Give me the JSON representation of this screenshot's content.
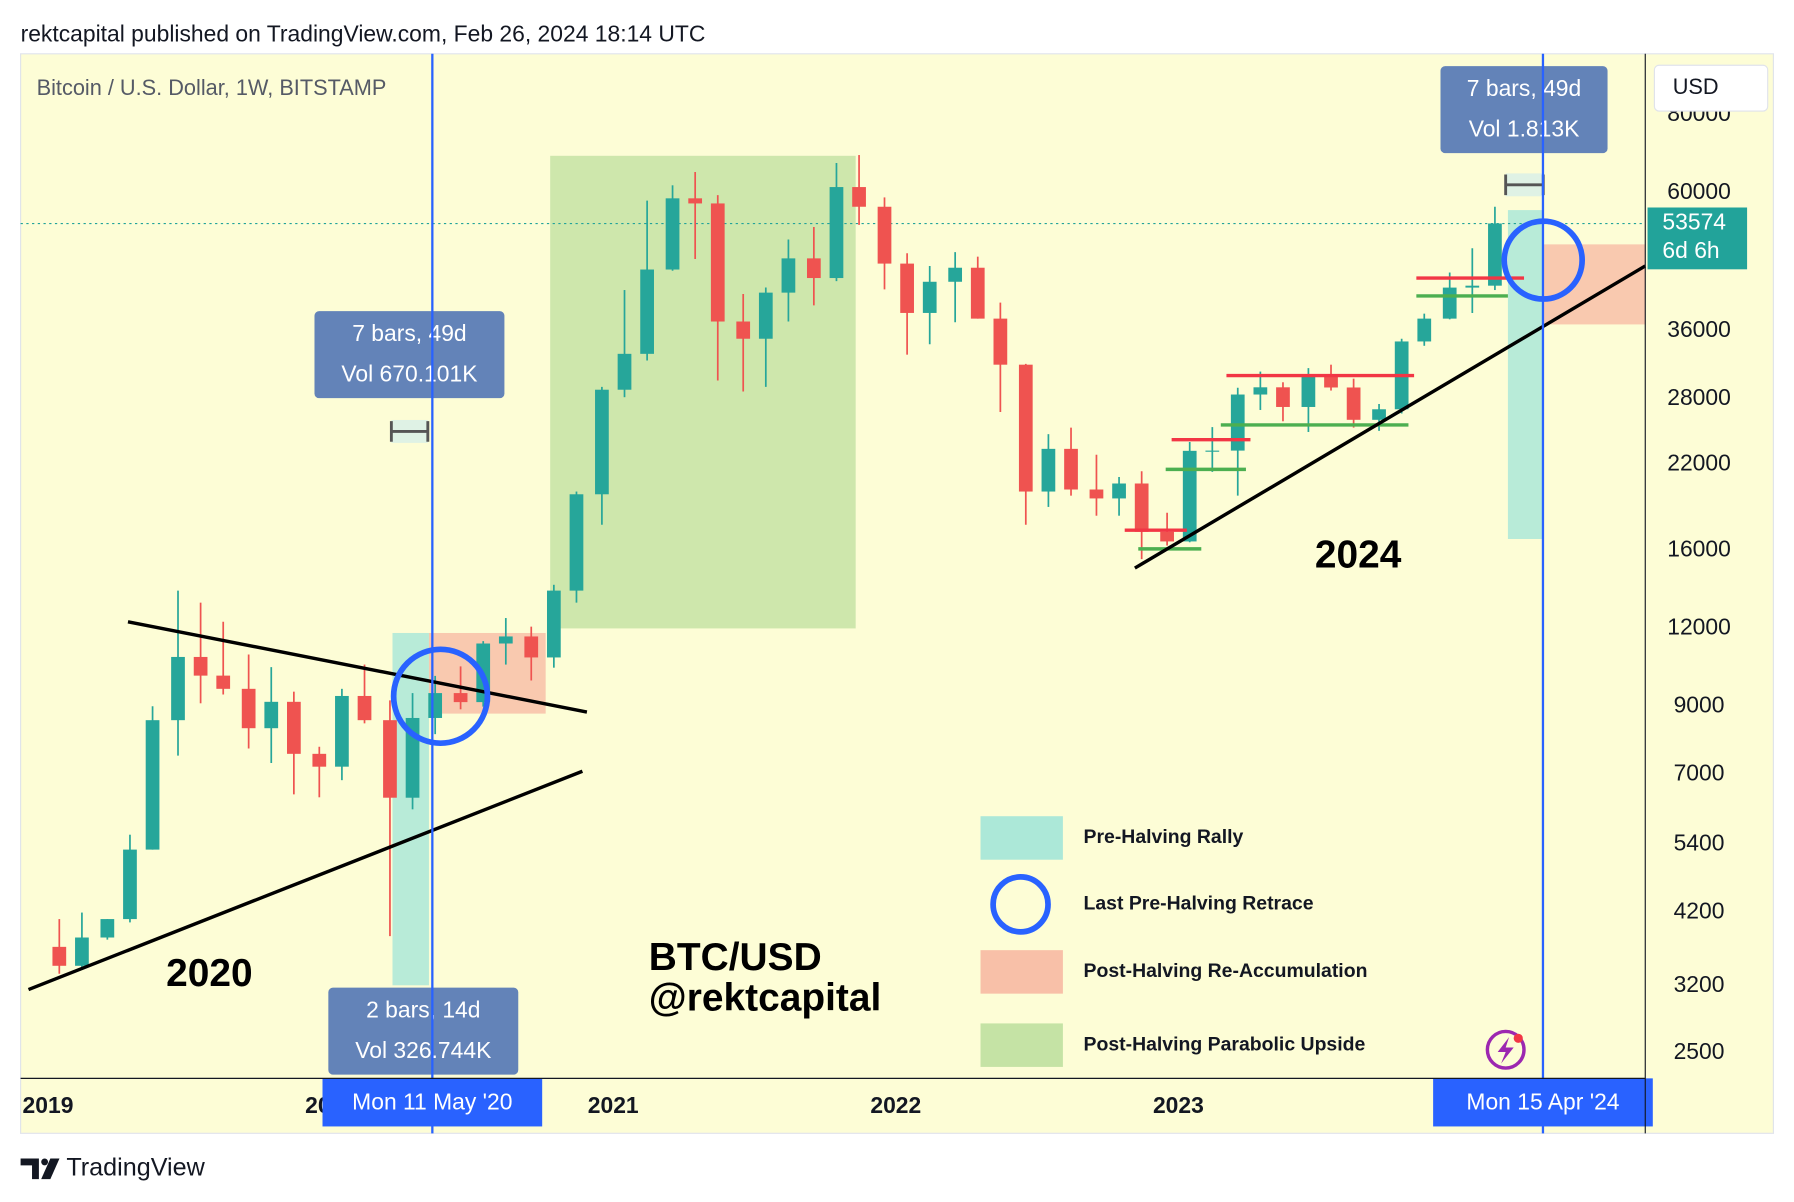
{
  "header": "rektcapital published on TradingView.com, Feb 26, 2024 18:14 UTC",
  "footer": "TradingView",
  "chart_data": {
    "type": "candlestick",
    "title": "Bitcoin / U.S. Dollar, 1W, BITSTAMP",
    "currency": "USD",
    "x": [
      2019.04,
      2019.12,
      2019.21,
      2019.29,
      2019.37,
      2019.46,
      2019.54,
      2019.62,
      2019.71,
      2019.79,
      2019.87,
      2019.96,
      2020.04,
      2020.12,
      2020.21,
      2020.29,
      2020.37,
      2020.46,
      2020.54,
      2020.62,
      2020.71,
      2020.79,
      2020.87,
      2020.96,
      2021.04,
      2021.12,
      2021.21,
      2021.29,
      2021.37,
      2021.46,
      2021.54,
      2021.62,
      2021.71,
      2021.79,
      2021.87,
      2021.96,
      2022.04,
      2022.12,
      2022.21,
      2022.29,
      2022.37,
      2022.46,
      2022.54,
      2022.62,
      2022.71,
      2022.79,
      2022.87,
      2022.96,
      2023.04,
      2023.12,
      2023.21,
      2023.29,
      2023.37,
      2023.46,
      2023.54,
      2023.62,
      2023.71,
      2023.79,
      2023.87,
      2023.96,
      2024.04,
      2024.12
    ],
    "open": [
      3700,
      3450,
      3830,
      4100,
      5300,
      8550,
      10800,
      10080,
      9600,
      8300,
      9150,
      7550,
      7200,
      9350,
      8550,
      6420,
      8620,
      9450,
      9140,
      11350,
      11650,
      10780,
      13800,
      19700,
      28990,
      33100,
      45200,
      58800,
      57700,
      37300,
      35000,
      41500,
      47100,
      43800,
      61300,
      57000,
      46200,
      38500,
      43200,
      45500,
      37700,
      31800,
      19900,
      23300,
      20050,
      19400,
      20500,
      17150,
      16550,
      23130,
      23150,
      28480,
      29250,
      27200,
      30480,
      29230,
      25940,
      26970,
      34650,
      37700,
      42280,
      42580
    ],
    "high": [
      4100,
      4200,
      4100,
      5600,
      9000,
      13800,
      13200,
      12300,
      10900,
      10400,
      9500,
      7750,
      9600,
      10500,
      9200,
      9450,
      10070,
      10430,
      11450,
      12470,
      12080,
      14100,
      19900,
      29300,
      41900,
      58300,
      61700,
      64800,
      59500,
      41300,
      42300,
      50500,
      52900,
      67000,
      69000,
      59000,
      48000,
      45800,
      48200,
      47400,
      40000,
      31900,
      24600,
      25200,
      22800,
      21000,
      21450,
      18400,
      23900,
      25250,
      29200,
      31000,
      29800,
      31400,
      31800,
      30200,
      27500,
      35000,
      38400,
      44700,
      48900,
      57000
    ],
    "low": [
      3350,
      3400,
      3800,
      4050,
      5300,
      7500,
      9100,
      9400,
      7700,
      7300,
      6500,
      6430,
      6850,
      8450,
      3850,
      6150,
      8120,
      8900,
      8990,
      10500,
      9900,
      10380,
      13200,
      17600,
      28200,
      32300,
      45000,
      47000,
      30000,
      28800,
      29300,
      37300,
      39600,
      43300,
      53300,
      42000,
      33000,
      34300,
      37200,
      37700,
      26700,
      17600,
      18800,
      19600,
      18200,
      18200,
      15500,
      16300,
      16500,
      21400,
      19600,
      26900,
      25800,
      24800,
      28900,
      25200,
      24900,
      26550,
      34100,
      37600,
      38500,
      41900
    ],
    "close": [
      3450,
      3830,
      4100,
      5300,
      8550,
      10800,
      10080,
      9600,
      8300,
      9150,
      7550,
      7200,
      9350,
      8550,
      6420,
      8620,
      9450,
      9140,
      11350,
      11650,
      10780,
      13800,
      19700,
      28990,
      33100,
      45200,
      58800,
      57700,
      37300,
      35000,
      41500,
      47100,
      43800,
      61300,
      57000,
      46200,
      38500,
      43200,
      45500,
      37700,
      31800,
      19900,
      23300,
      20050,
      19400,
      20500,
      17150,
      16550,
      23130,
      23150,
      28480,
      29250,
      27200,
      30480,
      29230,
      25940,
      26970,
      34650,
      37700,
      42280,
      42580,
      53574
    ],
    "up_color": "#26a69a",
    "down_color": "#ef5350",
    "xlim": [
      2018.903,
      2024.652
    ],
    "xticks": [
      2019,
      2020,
      2021,
      2022,
      2023,
      2024
    ],
    "ylim": [
      2276,
      100300
    ],
    "log_scale": true,
    "grid": false,
    "yticks": [
      2500,
      3200,
      4200,
      5400,
      7000,
      9000,
      12000,
      16000,
      22000,
      28000,
      36000,
      60000,
      80000
    ],
    "last_price": 53574,
    "countdown": "6d 6h",
    "last_price_color": "#22a39a",
    "rectangles": [
      {
        "x": [
          2020.777,
          2021.858
        ],
        "y": [
          12000,
          68800
        ],
        "color": "#c5e3a5"
      },
      {
        "x": [
          2020.219,
          2020.348
        ],
        "y": [
          3210,
          11800
        ],
        "color": "#ace8d8"
      },
      {
        "x": [
          2020.348,
          2020.761
        ],
        "y": [
          8760,
          11800
        ],
        "color": "#f8c0a8"
      },
      {
        "x": [
          2024.166,
          2024.291
        ],
        "y": [
          16700,
          56300
        ],
        "color": "#ace8d8"
      },
      {
        "x": [
          2024.291,
          2024.652
        ],
        "y": [
          36900,
          49600
        ],
        "color": "#f8c0a8"
      }
    ],
    "trend_lines": [
      {
        "x": [
          2019.283,
          2020.907
        ],
        "y": [
          12300,
          8810
        ],
        "color": "#000000"
      },
      {
        "x": [
          2018.931,
          2020.891
        ],
        "y": [
          3160,
          7080
        ],
        "color": "#000000"
      },
      {
        "x": [
          2022.846,
          2024.652
        ],
        "y": [
          15000,
          45800
        ],
        "color": "#000000"
      }
    ],
    "levels": [
      {
        "x": [
          2022.81,
          2023.03
        ],
        "y": 17250,
        "color": "#f23645"
      },
      {
        "x": [
          2022.858,
          2023.081
        ],
        "y": 16100,
        "color": "#4caf50"
      },
      {
        "x": [
          2022.976,
          2023.255
        ],
        "y": 24100,
        "color": "#f23645"
      },
      {
        "x": [
          2022.955,
          2023.239
        ],
        "y": 21600,
        "color": "#4caf50"
      },
      {
        "x": [
          2023.17,
          2023.834
        ],
        "y": 30550,
        "color": "#f23645"
      },
      {
        "x": [
          2023.15,
          2023.814
        ],
        "y": 25450,
        "color": "#4caf50"
      },
      {
        "x": [
          2023.842,
          2024.223
        ],
        "y": 43800,
        "color": "#f23645"
      },
      {
        "x": [
          2023.842,
          2024.166
        ],
        "y": 41000,
        "color": "#4caf50"
      }
    ],
    "circles": [
      {
        "x": 2020.389,
        "y": 9340,
        "color": "#2962ff"
      },
      {
        "x": 2024.291,
        "y": 46800,
        "color": "#2962ff"
      }
    ],
    "measures": [
      {
        "lines": [
          "7 bars, 49d",
          "Vol 670.101K"
        ],
        "x": 2020.279,
        "y": 33000,
        "bracket_x": [
          2020.215,
          2020.344
        ],
        "bracket_y": 24850
      },
      {
        "lines": [
          "2 bars, 14d",
          "Vol 326.744K"
        ],
        "x": 2020.328,
        "y": 2710
      },
      {
        "lines": [
          "7 bars, 49d",
          "Vol 1.813K"
        ],
        "x": 2024.223,
        "y": 81600,
        "bracket_x": [
          2024.158,
          2024.291
        ],
        "bracket_y": 61800
      }
    ],
    "markers": [
      {
        "x": 2020.36,
        "label": "Mon 11 May '20"
      },
      {
        "x": 2024.29,
        "label": "Mon 15 Apr '24"
      }
    ],
    "marker_color": "#2962ff",
    "texts": [
      {
        "text": "2020",
        "x": 2019.571,
        "y": 3325
      },
      {
        "text": "2024",
        "x": 2023.636,
        "y": 15600
      },
      {
        "text": "BTC/USD",
        "x": 2021.126,
        "y": 3530
      },
      {
        "text": "@rektcapital",
        "x": 2021.126,
        "y": 3040
      }
    ],
    "legend": [
      {
        "label": "Pre-Halving Rally",
        "kind": "rect",
        "color": "#ace8d8"
      },
      {
        "label": "Last Pre-Halving Retrace",
        "kind": "circle",
        "color": "#2962ff"
      },
      {
        "label": "Post-Halving Re-Accumulation",
        "kind": "rect",
        "color": "#f8c0a8"
      },
      {
        "label": "Post-Halving Parabolic Upside",
        "kind": "rect",
        "color": "#c5e3a5"
      }
    ]
  }
}
